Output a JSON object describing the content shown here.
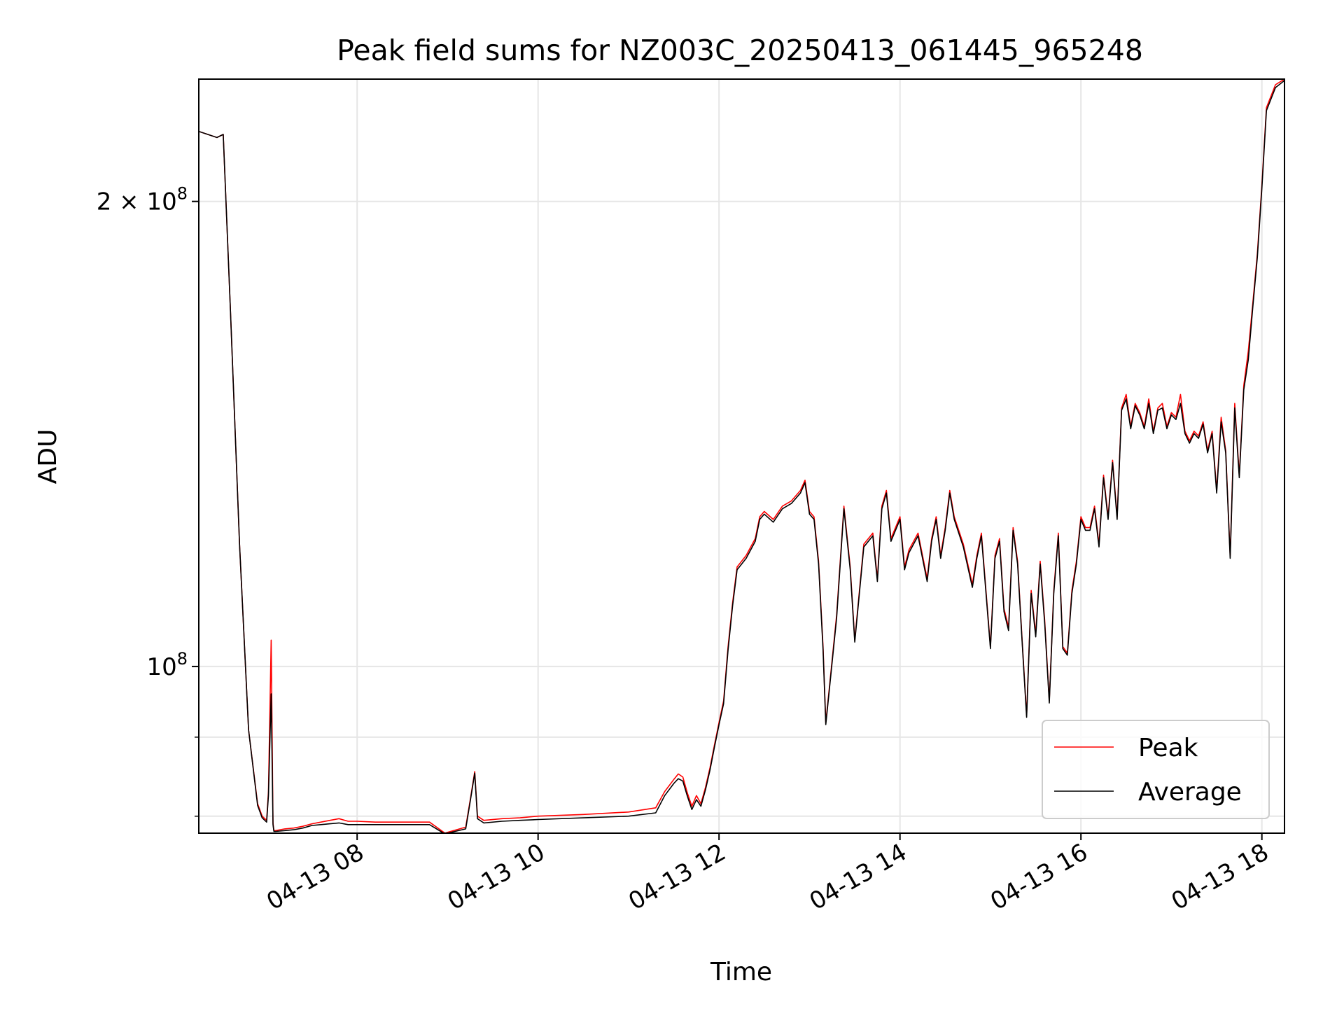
{
  "colors": {
    "peak": "#ff0000",
    "average": "#000000",
    "grid": "#e6e6e6",
    "axes": "#000000",
    "background": "#ffffff"
  },
  "chart_data": {
    "type": "line",
    "title": "Peak field sums for NZ003C_20250413_061445_965248",
    "xlabel": "Time",
    "ylabel": "ADU",
    "x_unit": "hour of 2025-04-13",
    "xlim": [
      6.25,
      18.25
    ],
    "ylim": [
      78000000,
      240000000
    ],
    "yscale": "log",
    "grid": true,
    "legend_position": "lower right",
    "x_ticks": [
      {
        "value": 8,
        "label": "04-13 08"
      },
      {
        "value": 10,
        "label": "04-13 10"
      },
      {
        "value": 12,
        "label": "04-13 12"
      },
      {
        "value": 14,
        "label": "04-13 14"
      },
      {
        "value": 16,
        "label": "04-13 16"
      },
      {
        "value": 18,
        "label": "04-13 18"
      }
    ],
    "y_major_ticks": [
      {
        "value": 100000000,
        "base": "10",
        "exp": "8",
        "prefix": ""
      },
      {
        "value": 200000000,
        "base": "10",
        "exp": "8",
        "prefix": "2 × "
      }
    ],
    "y_minor_ticks": [
      80000000,
      90000000
    ],
    "series": [
      {
        "name": "Peak",
        "color": "#ff0000",
        "x": [
          6.25,
          6.35,
          6.45,
          6.52,
          6.6,
          6.7,
          6.8,
          6.9,
          6.95,
          7.0,
          7.02,
          7.05,
          7.07,
          7.08,
          7.1,
          7.2,
          7.3,
          7.4,
          7.5,
          7.6,
          7.7,
          7.8,
          7.9,
          8.0,
          8.2,
          8.4,
          8.6,
          8.8,
          8.97,
          9.0,
          9.2,
          9.25,
          9.3,
          9.33,
          9.4,
          9.6,
          9.8,
          10.0,
          10.5,
          11.0,
          11.3,
          11.4,
          11.5,
          11.55,
          11.6,
          11.65,
          11.7,
          11.75,
          11.8,
          11.85,
          11.9,
          11.95,
          12.0,
          12.05,
          12.1,
          12.15,
          12.2,
          12.25,
          12.3,
          12.4,
          12.45,
          12.5,
          12.6,
          12.7,
          12.8,
          12.9,
          12.95,
          13.0,
          13.05,
          13.1,
          13.15,
          13.18,
          13.22,
          13.3,
          13.38,
          13.45,
          13.5,
          13.6,
          13.7,
          13.75,
          13.8,
          13.85,
          13.9,
          14.0,
          14.05,
          14.1,
          14.2,
          14.3,
          14.35,
          14.4,
          14.45,
          14.5,
          14.55,
          14.6,
          14.7,
          14.8,
          14.85,
          14.9,
          15.0,
          15.05,
          15.1,
          15.15,
          15.2,
          15.25,
          15.3,
          15.35,
          15.4,
          15.45,
          15.5,
          15.55,
          15.6,
          15.65,
          15.7,
          15.75,
          15.8,
          15.85,
          15.9,
          15.95,
          16.0,
          16.05,
          16.1,
          16.15,
          16.2,
          16.25,
          16.3,
          16.35,
          16.4,
          16.45,
          16.5,
          16.55,
          16.6,
          16.65,
          16.7,
          16.75,
          16.8,
          16.85,
          16.9,
          16.95,
          17.0,
          17.05,
          17.1,
          17.15,
          17.2,
          17.25,
          17.3,
          17.35,
          17.4,
          17.45,
          17.5,
          17.55,
          17.6,
          17.65,
          17.7,
          17.75,
          17.8,
          17.85,
          17.9,
          17.95,
          18.0,
          18.05,
          18.15,
          18.25
        ],
        "y": [
          222000000,
          221000000,
          220000000,
          221000000,
          170000000,
          120000000,
          91000000,
          81500000,
          80000000,
          79500000,
          83000000,
          104000000,
          79200000,
          78300000,
          78300000,
          78500000,
          78600000,
          78800000,
          79100000,
          79300000,
          79500000,
          79700000,
          79400000,
          79400000,
          79300000,
          79300000,
          79300000,
          79300000,
          78000000,
          78100000,
          78700000,
          82000000,
          85500000,
          80000000,
          79500000,
          79700000,
          79800000,
          80000000,
          80200000,
          80500000,
          81000000,
          83000000,
          84500000,
          85200000,
          84800000,
          82800000,
          81200000,
          82500000,
          81500000,
          83500000,
          86000000,
          89000000,
          92000000,
          95000000,
          103000000,
          110000000,
          116000000,
          117000000,
          118000000,
          121000000,
          125000000,
          126000000,
          124500000,
          127000000,
          128000000,
          130000000,
          132000000,
          126000000,
          125000000,
          117000000,
          103000000,
          92000000,
          97000000,
          108000000,
          127000000,
          116000000,
          104000000,
          120000000,
          122000000,
          114000000,
          127000000,
          130000000,
          121000000,
          125000000,
          116000000,
          119000000,
          122000000,
          114000000,
          121000000,
          125000000,
          118000000,
          123000000,
          130000000,
          125000000,
          120000000,
          113000000,
          118000000,
          122000000,
          103000000,
          118000000,
          121000000,
          109000000,
          106000000,
          123000000,
          117000000,
          104000000,
          93000000,
          112000000,
          105000000,
          117000000,
          107000000,
          95000000,
          112000000,
          122000000,
          103000000,
          102000000,
          112000000,
          117000000,
          125000000,
          123000000,
          123000000,
          127000000,
          120000000,
          133000000,
          125000000,
          136000000,
          125000000,
          147000000,
          150000000,
          143000000,
          148000000,
          146000000,
          143000000,
          149000000,
          142000000,
          147000000,
          148000000,
          143000000,
          146000000,
          145000000,
          150000000,
          142000000,
          140000000,
          142000000,
          141000000,
          144000000,
          138000000,
          142000000,
          130000000,
          145000000,
          138000000,
          118000000,
          148000000,
          133000000,
          152000000,
          160000000,
          172000000,
          185000000,
          205000000,
          230000000,
          238000000,
          240000000
        ]
      },
      {
        "name": "Average",
        "color": "#000000",
        "x": [
          6.25,
          6.35,
          6.45,
          6.52,
          6.6,
          6.7,
          6.8,
          6.9,
          6.95,
          7.0,
          7.02,
          7.05,
          7.07,
          7.08,
          7.1,
          7.2,
          7.3,
          7.4,
          7.5,
          7.6,
          7.7,
          7.8,
          7.9,
          8.0,
          8.2,
          8.4,
          8.6,
          8.8,
          8.97,
          9.0,
          9.2,
          9.25,
          9.3,
          9.33,
          9.4,
          9.6,
          9.8,
          10.0,
          10.5,
          11.0,
          11.3,
          11.4,
          11.5,
          11.55,
          11.6,
          11.65,
          11.7,
          11.75,
          11.8,
          11.85,
          11.9,
          11.95,
          12.0,
          12.05,
          12.1,
          12.15,
          12.2,
          12.25,
          12.3,
          12.4,
          12.45,
          12.5,
          12.6,
          12.7,
          12.8,
          12.9,
          12.95,
          13.0,
          13.05,
          13.1,
          13.15,
          13.18,
          13.22,
          13.3,
          13.38,
          13.45,
          13.5,
          13.6,
          13.7,
          13.75,
          13.8,
          13.85,
          13.9,
          14.0,
          14.05,
          14.1,
          14.2,
          14.3,
          14.35,
          14.4,
          14.45,
          14.5,
          14.55,
          14.6,
          14.7,
          14.8,
          14.85,
          14.9,
          15.0,
          15.05,
          15.1,
          15.15,
          15.2,
          15.25,
          15.3,
          15.35,
          15.4,
          15.45,
          15.5,
          15.55,
          15.6,
          15.65,
          15.7,
          15.75,
          15.8,
          15.85,
          15.9,
          15.95,
          16.0,
          16.05,
          16.1,
          16.15,
          16.2,
          16.25,
          16.3,
          16.35,
          16.4,
          16.45,
          16.5,
          16.55,
          16.6,
          16.65,
          16.7,
          16.75,
          16.8,
          16.85,
          16.9,
          16.95,
          17.0,
          17.05,
          17.1,
          17.15,
          17.2,
          17.25,
          17.3,
          17.35,
          17.4,
          17.45,
          17.5,
          17.55,
          17.6,
          17.65,
          17.7,
          17.75,
          17.8,
          17.85,
          17.9,
          17.95,
          18.0,
          18.05,
          18.15,
          18.25
        ],
        "y": [
          222000000,
          221000000,
          220000000,
          221000000,
          170000000,
          120000000,
          91000000,
          81300000,
          79800000,
          79300000,
          82500000,
          96000000,
          79000000,
          78200000,
          78200000,
          78300000,
          78400000,
          78600000,
          78900000,
          79000000,
          79100000,
          79200000,
          79000000,
          79000000,
          79000000,
          79000000,
          79000000,
          79000000,
          77900000,
          78000000,
          78500000,
          81800000,
          85300000,
          79700000,
          79200000,
          79400000,
          79500000,
          79600000,
          79800000,
          80000000,
          80400000,
          82500000,
          84000000,
          84600000,
          84300000,
          82400000,
          80800000,
          82000000,
          81200000,
          83200000,
          85700000,
          88700000,
          91700000,
          94600000,
          102500000,
          109500000,
          115500000,
          116500000,
          117500000,
          120500000,
          124500000,
          125500000,
          124000000,
          126500000,
          127500000,
          129500000,
          131500000,
          125500000,
          124500000,
          116500000,
          102500000,
          91700000,
          96700000,
          107500000,
          126500000,
          115500000,
          103700000,
          119500000,
          121500000,
          113500000,
          126500000,
          129500000,
          120500000,
          124500000,
          115500000,
          118500000,
          121500000,
          113500000,
          120500000,
          124500000,
          117500000,
          122500000,
          129500000,
          124500000,
          119500000,
          112500000,
          117500000,
          121500000,
          102700000,
          117500000,
          120500000,
          108500000,
          105500000,
          122500000,
          116500000,
          103700000,
          92700000,
          111500000,
          104500000,
          116500000,
          106500000,
          94700000,
          111500000,
          121500000,
          102700000,
          101700000,
          111500000,
          116500000,
          124500000,
          122500000,
          122500000,
          126500000,
          119500000,
          132500000,
          124500000,
          135500000,
          124500000,
          146500000,
          149000000,
          142500000,
          147500000,
          145500000,
          142500000,
          148000000,
          141500000,
          146500000,
          147000000,
          142500000,
          145500000,
          144500000,
          148000000,
          141500000,
          139500000,
          141500000,
          140500000,
          143500000,
          137500000,
          141500000,
          129500000,
          144000000,
          137500000,
          117500000,
          147000000,
          132500000,
          151000000,
          158000000,
          171000000,
          184000000,
          204000000,
          229000000,
          237000000,
          239500000
        ]
      }
    ]
  }
}
